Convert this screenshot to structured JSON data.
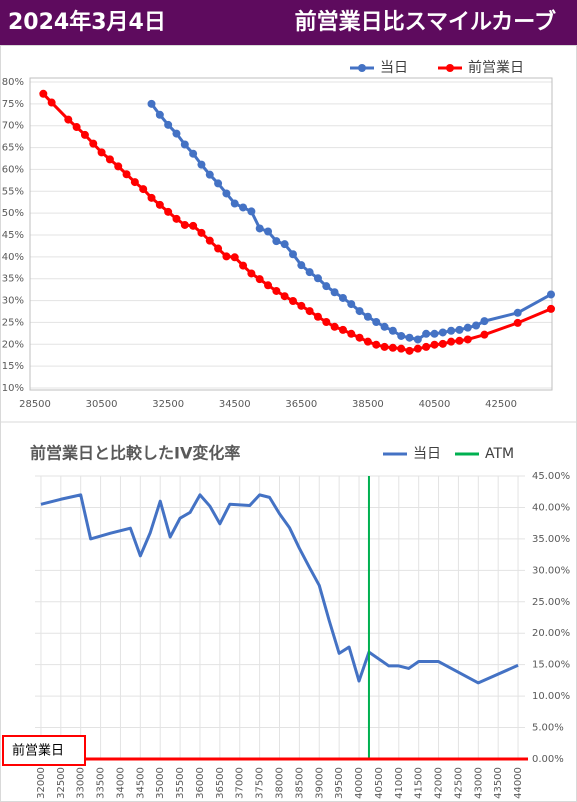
{
  "header": {
    "date": "2024年3月4日",
    "title": "前営業日比スマイルカーブ"
  },
  "chart_data": [
    {
      "type": "line",
      "xlim": [
        28500,
        44000
      ],
      "ylim": [
        10,
        80
      ],
      "xticks": [
        28500,
        30500,
        32500,
        34500,
        36500,
        38500,
        40500,
        42500
      ],
      "yticks": [
        {
          "value": 10,
          "label": "10%"
        },
        {
          "value": 15,
          "label": "15%"
        },
        {
          "value": 20,
          "label": "20%"
        },
        {
          "value": 25,
          "label": "25%"
        },
        {
          "value": 30,
          "label": "30%"
        },
        {
          "value": 35,
          "label": "35%"
        },
        {
          "value": 40,
          "label": "40%"
        },
        {
          "value": 45,
          "label": "45%"
        },
        {
          "value": 50,
          "label": "50%"
        },
        {
          "value": 55,
          "label": "55%"
        },
        {
          "value": 60,
          "label": "60%"
        },
        {
          "value": 65,
          "label": "65%"
        },
        {
          "value": 70,
          "label": "70%"
        },
        {
          "value": 75,
          "label": "75%"
        },
        {
          "value": 80,
          "label": "80%"
        }
      ],
      "grid": true,
      "markers": true,
      "series": [
        {
          "name": "当日",
          "color": "#4472c4",
          "x": [
            32000,
            32250,
            32500,
            32750,
            33000,
            33250,
            33500,
            33750,
            34000,
            34250,
            34500,
            34750,
            35000,
            35250,
            35500,
            35750,
            36000,
            36250,
            36500,
            36750,
            37000,
            37250,
            37500,
            37750,
            38000,
            38250,
            38500,
            38750,
            39000,
            39250,
            39500,
            39750,
            40000,
            40250,
            40500,
            40750,
            41000,
            41250,
            41500,
            41750,
            42000,
            43000,
            44000
          ],
          "values": [
            75,
            72.5,
            70.2,
            68.2,
            65.7,
            63.6,
            61.1,
            58.8,
            56.8,
            54.5,
            52.2,
            51.3,
            50.4,
            46.5,
            45.8,
            43.6,
            42.9,
            40.6,
            38.1,
            36.5,
            35.1,
            33.3,
            31.9,
            30.6,
            29.2,
            27.6,
            26.3,
            25.1,
            24.0,
            23.1,
            21.9,
            21.5,
            21.1,
            22.4,
            22.4,
            22.7,
            23.1,
            23.3,
            23.8,
            24.3,
            25.3,
            27.2,
            31.4
          ]
        },
        {
          "name": "前営業日",
          "color": "#ff0000",
          "x": [
            28750,
            29000,
            29500,
            29750,
            30000,
            30250,
            30500,
            30750,
            31000,
            31250,
            31500,
            31750,
            32000,
            32250,
            32500,
            32750,
            33000,
            33250,
            33500,
            33750,
            34000,
            34250,
            34500,
            34750,
            35000,
            35250,
            35500,
            35750,
            36000,
            36250,
            36500,
            36750,
            37000,
            37250,
            37500,
            37750,
            38000,
            38250,
            38500,
            38750,
            39000,
            39250,
            39500,
            39750,
            40000,
            40250,
            40500,
            40750,
            41000,
            41250,
            41500,
            42000,
            43000,
            44000
          ],
          "values": [
            77.3,
            75.3,
            71.4,
            69.7,
            67.9,
            65.9,
            63.9,
            62.3,
            60.7,
            58.9,
            57.1,
            55.5,
            53.5,
            51.9,
            50.3,
            48.7,
            47.3,
            47.1,
            45.5,
            43.7,
            41.9,
            40.1,
            39.9,
            38.0,
            36.2,
            34.9,
            33.5,
            32.2,
            31.0,
            29.9,
            28.8,
            27.6,
            26.3,
            25.1,
            24.0,
            23.3,
            22.4,
            21.5,
            20.6,
            19.9,
            19.4,
            19.2,
            19.0,
            18.5,
            19.0,
            19.4,
            19.9,
            20.1,
            20.6,
            20.8,
            21.1,
            22.2,
            24.9,
            28.1
          ]
        }
      ]
    },
    {
      "type": "line",
      "title": "前営業日と比較したIV変化率",
      "xlim": [
        31750,
        44250
      ],
      "y2lim": [
        0,
        45
      ],
      "xticks": [
        32000,
        32500,
        33000,
        33500,
        34000,
        34500,
        35000,
        35500,
        36000,
        36500,
        37000,
        37500,
        38000,
        38500,
        39000,
        39500,
        40000,
        40500,
        41000,
        41500,
        42000,
        42500,
        43000,
        43500,
        44000
      ],
      "y2ticks": [
        {
          "value": 0,
          "label": "0.00%"
        },
        {
          "value": 5,
          "label": "5.00%"
        },
        {
          "value": 10,
          "label": "10.00%"
        },
        {
          "value": 15,
          "label": "15.00%"
        },
        {
          "value": 20,
          "label": "20.00%"
        },
        {
          "value": 25,
          "label": "25.00%"
        },
        {
          "value": 30,
          "label": "30.00%"
        },
        {
          "value": 35,
          "label": "35.00%"
        },
        {
          "value": 40,
          "label": "40.00%"
        },
        {
          "value": 45,
          "label": "45.00%"
        }
      ],
      "grid": true,
      "markers": false,
      "series": [
        {
          "name": "当日",
          "color": "#4472c4",
          "axis": "y2",
          "x": [
            32000,
            32500,
            33000,
            33250,
            33750,
            34250,
            34500,
            34750,
            35000,
            35250,
            35500,
            35750,
            36000,
            36250,
            36500,
            36750,
            37250,
            37500,
            37750,
            38000,
            38250,
            38500,
            38750,
            39000,
            39250,
            39500,
            39750,
            40000,
            40250,
            40750,
            41000,
            41250,
            41500,
            42000,
            43000,
            44000
          ],
          "values": [
            40.5,
            41.3,
            42.0,
            35.0,
            35.9,
            36.7,
            32.3,
            36.0,
            41.0,
            35.3,
            38.3,
            39.2,
            42.0,
            40.2,
            37.4,
            40.5,
            40.3,
            42.0,
            41.6,
            39.0,
            36.8,
            33.5,
            30.5,
            27.6,
            22.0,
            16.8,
            17.8,
            12.4,
            17.0,
            14.8,
            14.8,
            14.4,
            15.5,
            15.5,
            12.1,
            14.9
          ]
        },
        {
          "name": "ATM",
          "color": "#00b050",
          "vline": true,
          "x": 40250
        },
        {
          "name": "前営業日",
          "color": "#ff0000",
          "axis": "y2",
          "boxed": true,
          "x": [
            31750,
            44250
          ],
          "values": [
            0,
            0
          ]
        }
      ]
    }
  ]
}
